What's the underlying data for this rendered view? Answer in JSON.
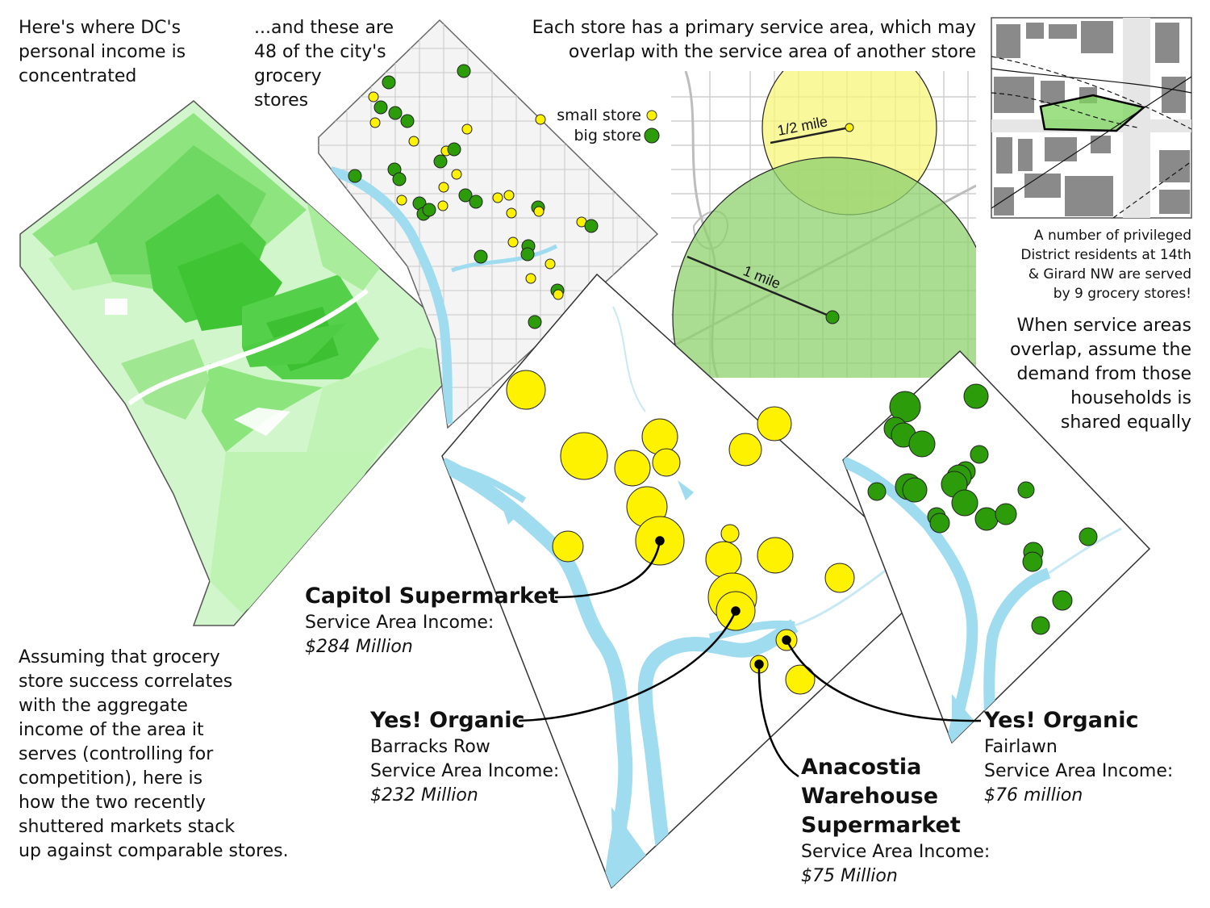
{
  "captions": {
    "income": [
      "Here's where DC's",
      "personal income is",
      "concentrated"
    ],
    "stores": [
      "...and these are",
      "48 of the city's",
      "grocery",
      "stores"
    ],
    "service_area": [
      "Each store has a primary service area, which may",
      "overlap with the service area of another store"
    ],
    "privileged": [
      "A number of privileged",
      "District residents at 14th",
      "& Girard NW are served",
      "by 9 grocery stores!"
    ],
    "overlap": [
      "When service areas",
      "overlap, assume the",
      "demand from those",
      "households is",
      "shared equally"
    ],
    "assumption": [
      "Assuming that grocery",
      "store success correlates",
      "with the aggregate",
      "income of the area it",
      "serves (controlling for",
      "competition), here is",
      "how the two recently",
      "shuttered markets stack",
      "up against comparable stores."
    ]
  },
  "legend": {
    "small_store": "small store",
    "big_store": "big store",
    "small_color": "#fff200",
    "big_color": "#2d9c0a"
  },
  "radius_labels": {
    "half_mile": "1/2 mile",
    "one_mile": "1 mile"
  },
  "stores": [
    {
      "name": "Capitol Supermarket",
      "detail": "",
      "income_label": "Service Area Income:",
      "income": "$284 Million"
    },
    {
      "name": "Yes! Organic",
      "detail": "Barracks Row",
      "income_label": "Service Area Income:",
      "income": "$232 Million"
    },
    {
      "name_lines": [
        "Anacostia",
        "Warehouse",
        "Supermarket"
      ],
      "detail": "",
      "income_label": "Service Area Income:",
      "income": "$75 Million"
    },
    {
      "name": "Yes! Organic",
      "detail": "Fairlawn",
      "income_label": "Service Area Income:",
      "income": "$76 million"
    }
  ],
  "colors": {
    "income_light": "#c8f5c0",
    "income_dark": "#33c02a",
    "water": "#9fdcef",
    "small_store": "#fff200",
    "big_store": "#2d9c0a",
    "area_yellow": "#f7f57a",
    "area_green": "#8dd06d"
  }
}
